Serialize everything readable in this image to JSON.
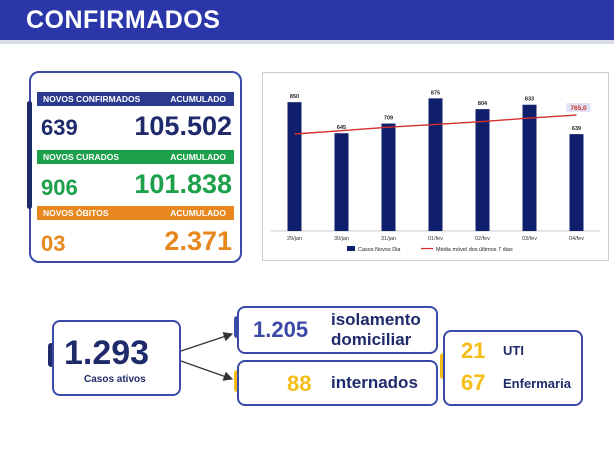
{
  "header": {
    "title": "CONFIRMADOS"
  },
  "stats": {
    "confirmados": {
      "label": "NOVOS CONFIRMADOS",
      "acc_label": "ACUMULADO",
      "new": "639",
      "acc": "105.502"
    },
    "curados": {
      "label": "NOVOS CURADOS",
      "acc_label": "ACUMULADO",
      "new": "906",
      "acc": "101.838"
    },
    "obitos": {
      "label": "NOVOS ÓBITOS",
      "acc_label": "ACUMULADO",
      "new": "03",
      "acc": "2.371"
    }
  },
  "chart_data": {
    "type": "bar",
    "categories": [
      "29/jan",
      "30/jan",
      "31/jan",
      "01/fev",
      "02/fev",
      "03/fev",
      "04/fev"
    ],
    "series": [
      {
        "name": "Casos Novos Dia",
        "type": "bar",
        "values": [
          850,
          645,
          709,
          875,
          804,
          833,
          639
        ]
      },
      {
        "name": "Média móvel dos últimos 7 dias",
        "type": "line",
        "values": [
          640,
          662,
          685,
          703,
          722,
          745,
          765
        ]
      }
    ],
    "value_labels": [
      "850",
      "645",
      "709",
      "875",
      "804",
      "833",
      "639"
    ],
    "line_label": "765,0",
    "ylim": [
      0,
      950
    ],
    "colors": {
      "bar": "#0f1f6b",
      "line": "#d32f2f"
    }
  },
  "bottom": {
    "active": {
      "value": "1.293",
      "label": "Casos ativos"
    },
    "isolamento": {
      "value": "1.205",
      "label_line1": "isolamento",
      "label_line2": "domiciliar"
    },
    "internados": {
      "value": "88",
      "label": "internados"
    },
    "uti": {
      "value": "21",
      "label": "UTI"
    },
    "enfermaria": {
      "value": "67",
      "label": "Enfermaria"
    }
  }
}
